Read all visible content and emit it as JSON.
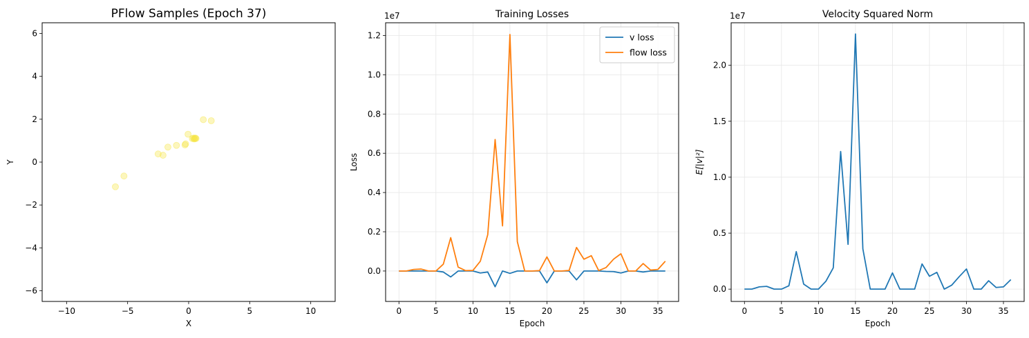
{
  "chart_data": [
    {
      "type": "scatter",
      "title": "PFlow Samples (Epoch 37)",
      "xlabel": "X",
      "ylabel": "Y",
      "xlim": [
        -12,
        12
      ],
      "ylim": [
        -6.5,
        6.5
      ],
      "xticks": [
        -10,
        -5,
        0,
        5,
        10
      ],
      "yticks": [
        -6,
        -4,
        -2,
        0,
        2,
        4,
        6
      ],
      "grid": false,
      "point_color": "#f5e642",
      "points": [
        {
          "x": -6.0,
          "y": -1.15
        },
        {
          "x": -5.3,
          "y": -0.65
        },
        {
          "x": -2.5,
          "y": 0.38
        },
        {
          "x": -2.1,
          "y": 0.32
        },
        {
          "x": -1.7,
          "y": 0.7
        },
        {
          "x": -1.0,
          "y": 0.78
        },
        {
          "x": -0.3,
          "y": 0.8
        },
        {
          "x": -0.25,
          "y": 0.85
        },
        {
          "x": -0.05,
          "y": 1.3
        },
        {
          "x": 0.3,
          "y": 1.1
        },
        {
          "x": 0.4,
          "y": 1.12
        },
        {
          "x": 0.45,
          "y": 1.08
        },
        {
          "x": 0.5,
          "y": 1.1
        },
        {
          "x": 0.55,
          "y": 1.12
        },
        {
          "x": 0.6,
          "y": 1.1
        },
        {
          "x": 1.2,
          "y": 1.98
        },
        {
          "x": 1.85,
          "y": 1.93
        }
      ]
    },
    {
      "type": "line",
      "title": "Training Losses",
      "xlabel": "Epoch",
      "ylabel": "Loss",
      "offset_label": "1e7",
      "xlim": [
        -1.8,
        37.8
      ],
      "ylim": [
        -0.155,
        1.265
      ],
      "xticks": [
        0,
        5,
        10,
        15,
        20,
        25,
        30,
        35
      ],
      "yticks": [
        0.0,
        0.2,
        0.4,
        0.6,
        0.8,
        1.0,
        1.2
      ],
      "ytick_labels": [
        "0.0",
        "0.2",
        "0.4",
        "0.6",
        "0.8",
        "1.0",
        "1.2"
      ],
      "grid": true,
      "legend": "top-right",
      "x": [
        0,
        1,
        2,
        3,
        4,
        5,
        6,
        7,
        8,
        9,
        10,
        11,
        12,
        13,
        14,
        15,
        16,
        17,
        18,
        19,
        20,
        21,
        22,
        23,
        24,
        25,
        26,
        27,
        28,
        29,
        30,
        31,
        32,
        33,
        34,
        35,
        36
      ],
      "series": [
        {
          "name": "v loss",
          "color": "#1f77b4",
          "values": [
            0,
            0,
            0,
            0,
            0,
            0,
            -0.005,
            -0.03,
            0,
            0,
            0,
            -0.01,
            -0.005,
            -0.08,
            0,
            -0.012,
            0,
            0,
            0,
            0,
            -0.06,
            0,
            0,
            0,
            -0.045,
            0,
            0,
            0,
            -0.002,
            -0.003,
            -0.01,
            0,
            0,
            -0.005,
            0,
            0,
            0
          ]
        },
        {
          "name": "flow loss",
          "color": "#ff7f0e",
          "values": [
            0,
            0,
            0.008,
            0.01,
            0,
            0,
            0.035,
            0.17,
            0.02,
            0.002,
            0.003,
            0.05,
            0.185,
            0.67,
            0.23,
            1.205,
            0.15,
            0,
            0,
            0.002,
            0.072,
            0,
            0,
            0.003,
            0.12,
            0.06,
            0.078,
            0.002,
            0.018,
            0.06,
            0.088,
            0,
            0,
            0.038,
            0.005,
            0.008,
            0.05
          ]
        }
      ]
    },
    {
      "type": "line",
      "title": "Velocity Squared Norm",
      "xlabel": "Epoch",
      "ylabel": "E[|v|²]",
      "offset_label": "1e7",
      "xlim": [
        -1.8,
        37.8
      ],
      "ylim": [
        -0.11,
        2.38
      ],
      "xticks": [
        0,
        5,
        10,
        15,
        20,
        25,
        30,
        35
      ],
      "yticks": [
        0.0,
        0.5,
        1.0,
        1.5,
        2.0
      ],
      "ytick_labels": [
        "0.0",
        "0.5",
        "1.0",
        "1.5",
        "2.0"
      ],
      "grid": true,
      "x": [
        0,
        1,
        2,
        3,
        4,
        5,
        6,
        7,
        8,
        9,
        10,
        11,
        12,
        13,
        14,
        15,
        16,
        17,
        18,
        19,
        20,
        21,
        22,
        23,
        24,
        25,
        26,
        27,
        28,
        29,
        30,
        31,
        32,
        33,
        34,
        35,
        36
      ],
      "series": [
        {
          "color": "#1f77b4",
          "values": [
            0,
            0,
            0.02,
            0.025,
            0,
            0,
            0.03,
            0.335,
            0.045,
            0,
            0,
            0.07,
            0.19,
            1.23,
            0.4,
            2.28,
            0.36,
            0,
            0,
            0,
            0.145,
            0,
            0,
            0,
            0.225,
            0.115,
            0.15,
            0,
            0.035,
            0.11,
            0.18,
            0,
            0,
            0.075,
            0.015,
            0.02,
            0.085
          ]
        }
      ]
    }
  ]
}
